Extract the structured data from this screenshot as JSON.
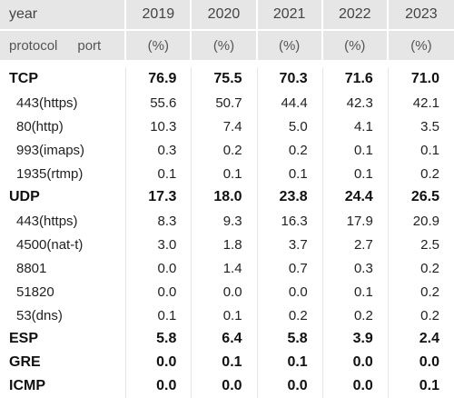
{
  "header": {
    "year_label": "year",
    "years": [
      "2019",
      "2020",
      "2021",
      "2022",
      "2023"
    ],
    "protocol_label": "protocol",
    "port_label": "port",
    "units": [
      "(%)",
      "(%)",
      "(%)",
      "(%)",
      "(%)"
    ]
  },
  "rows": [
    {
      "label": "TCP",
      "values": [
        "76.9",
        "75.5",
        "70.3",
        "71.6",
        "71.0"
      ]
    },
    {
      "label": "443(https)",
      "values": [
        "55.6",
        "50.7",
        "44.4",
        "42.3",
        "42.1"
      ]
    },
    {
      "label": "80(http)",
      "values": [
        "10.3",
        "7.4",
        "5.0",
        "4.1",
        "3.5"
      ]
    },
    {
      "label": "993(imaps)",
      "values": [
        "0.3",
        "0.2",
        "0.2",
        "0.1",
        "0.1"
      ]
    },
    {
      "label": "1935(rtmp)",
      "values": [
        "0.1",
        "0.1",
        "0.1",
        "0.1",
        "0.2"
      ]
    },
    {
      "label": "UDP",
      "values": [
        "17.3",
        "18.0",
        "23.8",
        "24.4",
        "26.5"
      ]
    },
    {
      "label": "443(https)",
      "values": [
        "8.3",
        "9.3",
        "16.3",
        "17.9",
        "20.9"
      ]
    },
    {
      "label": "4500(nat-t)",
      "values": [
        "3.0",
        "1.8",
        "3.7",
        "2.7",
        "2.5"
      ]
    },
    {
      "label": "8801",
      "values": [
        "0.0",
        "1.4",
        "0.7",
        "0.3",
        "0.2"
      ]
    },
    {
      "label": "51820",
      "values": [
        "0.0",
        "0.0",
        "0.0",
        "0.1",
        "0.2"
      ]
    },
    {
      "label": "53(dns)",
      "values": [
        "0.1",
        "0.1",
        "0.2",
        "0.2",
        "0.2"
      ]
    },
    {
      "label": "ESP",
      "values": [
        "5.8",
        "6.4",
        "5.8",
        "3.9",
        "2.4"
      ]
    },
    {
      "label": "GRE",
      "values": [
        "0.0",
        "0.1",
        "0.1",
        "0.0",
        "0.0"
      ]
    },
    {
      "label": "ICMP",
      "values": [
        "0.0",
        "0.0",
        "0.0",
        "0.0",
        "0.1"
      ]
    }
  ]
}
